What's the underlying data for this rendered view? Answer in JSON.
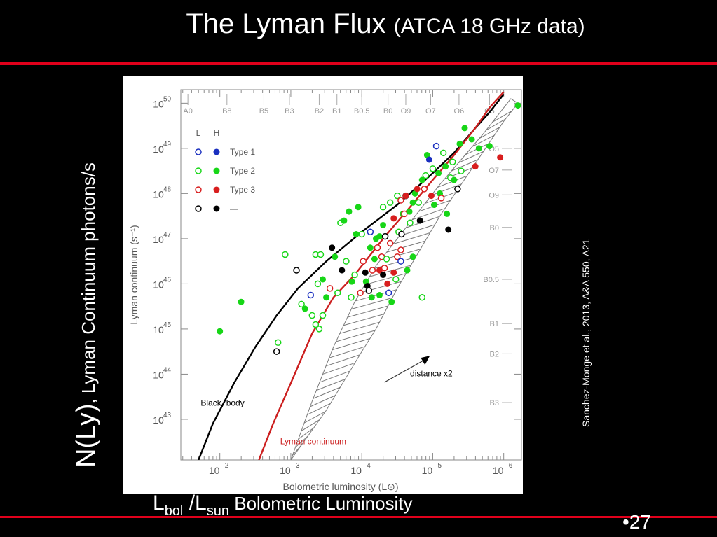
{
  "slide": {
    "title_main": "The Lyman Flux",
    "title_paren": "(ATCA 18  GHz data)",
    "ylabel_main": "N(Ly)",
    "ylabel_rest": ", Lyman Continuum photons/s",
    "credit": "Sanchez-Monge et al., 2013, A&A 550, A21",
    "xlabel_l": "L",
    "xlabel_bol": "bol",
    "xlabel_slash": " /L",
    "xlabel_sun": "sun",
    "xlabel_rest": " Bolometric Luminosity",
    "page_bullet": "•",
    "page_number": "27"
  },
  "chart_data": {
    "type": "scatter",
    "xlabel": "Bolometric luminosity (L⊙)",
    "ylabel": "Lyman continuum (s⁻¹)",
    "x_log": true,
    "y_log": true,
    "xlim_log10": [
      1.45,
      6.25
    ],
    "ylim_log10": [
      42.1,
      50.3
    ],
    "x_ticks": [
      {
        "log": 2,
        "base": "10",
        "exp": "2"
      },
      {
        "log": 3,
        "base": "10",
        "exp": "3"
      },
      {
        "log": 4,
        "base": "10",
        "exp": "4"
      },
      {
        "log": 5,
        "base": "10",
        "exp": "5"
      },
      {
        "log": 6,
        "base": "10",
        "exp": "6"
      }
    ],
    "y_ticks": [
      {
        "log": 43,
        "base": "10",
        "exp": "43"
      },
      {
        "log": 44,
        "base": "10",
        "exp": "44"
      },
      {
        "log": 45,
        "base": "10",
        "exp": "45"
      },
      {
        "log": 46,
        "base": "10",
        "exp": "46"
      },
      {
        "log": 47,
        "base": "10",
        "exp": "47"
      },
      {
        "log": 48,
        "base": "10",
        "exp": "48"
      },
      {
        "log": 49,
        "base": "10",
        "exp": "49"
      },
      {
        "log": 50,
        "base": "10",
        "exp": "50"
      }
    ],
    "top_spectral_types": [
      {
        "label": "A0",
        "logL": 1.55
      },
      {
        "label": "B8",
        "logL": 2.1
      },
      {
        "label": "B5",
        "logL": 2.62
      },
      {
        "label": "B3",
        "logL": 2.98
      },
      {
        "label": "B2",
        "logL": 3.4
      },
      {
        "label": "B1",
        "logL": 3.65
      },
      {
        "label": "B0.5",
        "logL": 4.0
      },
      {
        "label": "B0",
        "logL": 4.37
      },
      {
        "label": "O9",
        "logL": 4.62
      },
      {
        "label": "O7",
        "logL": 4.97
      },
      {
        "label": "O6",
        "logL": 5.37
      },
      {
        "label": "O5",
        "logL": 5.8
      }
    ],
    "right_spectral_types": [
      {
        "label": "O5",
        "logN": 49.0
      },
      {
        "label": "O7",
        "logN": 48.52
      },
      {
        "label": "O9",
        "logN": 47.97
      },
      {
        "label": "B0",
        "logN": 47.25
      },
      {
        "label": "B0.5",
        "logN": 46.1
      },
      {
        "label": "B1",
        "logN": 45.12
      },
      {
        "label": "B2",
        "logN": 44.45
      },
      {
        "label": "B3",
        "logN": 43.37
      }
    ],
    "legend": {
      "header_l": "L",
      "header_h": "H",
      "entries": [
        {
          "label": "Type 1",
          "color": "#1a2fbf"
        },
        {
          "label": "Type 2",
          "color": "#17d617"
        },
        {
          "label": "Type 3",
          "color": "#d81e1e"
        },
        {
          "label": "—",
          "color": "#000000"
        }
      ]
    },
    "series": [
      {
        "name": "Black-body",
        "color": "#000000",
        "points": [
          [
            1.7,
            42.1
          ],
          [
            1.9,
            42.9
          ],
          [
            2.2,
            43.8
          ],
          [
            2.5,
            44.6
          ],
          [
            2.8,
            45.3
          ],
          [
            3.1,
            45.9
          ],
          [
            3.5,
            46.5
          ],
          [
            4.0,
            47.15
          ],
          [
            4.5,
            47.75
          ],
          [
            5.0,
            48.45
          ],
          [
            5.3,
            48.9
          ],
          [
            5.6,
            49.45
          ],
          [
            5.8,
            49.8
          ],
          [
            6.0,
            50.2
          ]
        ]
      },
      {
        "name": "Lyman continuum",
        "color": "#cc1f1f",
        "points": [
          [
            2.55,
            42.1
          ],
          [
            2.75,
            42.9
          ],
          [
            3.0,
            43.8
          ],
          [
            3.3,
            44.9
          ],
          [
            3.6,
            45.7
          ],
          [
            3.9,
            46.2
          ],
          [
            4.1,
            46.6
          ],
          [
            4.3,
            47.0
          ],
          [
            4.6,
            47.55
          ],
          [
            5.0,
            48.3
          ],
          [
            5.3,
            48.85
          ],
          [
            5.6,
            49.45
          ],
          [
            5.8,
            49.9
          ],
          [
            6.0,
            50.25
          ]
        ]
      }
    ],
    "hatched_band": {
      "upper": [
        [
          3.0,
          42.1
        ],
        [
          3.3,
          43.4
        ],
        [
          3.6,
          44.6
        ],
        [
          3.9,
          45.6
        ],
        [
          4.2,
          46.4
        ],
        [
          4.5,
          47.0
        ],
        [
          4.8,
          47.6
        ],
        [
          5.1,
          48.2
        ],
        [
          5.4,
          48.75
        ],
        [
          5.7,
          49.3
        ],
        [
          5.95,
          49.8
        ],
        [
          6.1,
          50.1
        ]
      ],
      "lower": [
        [
          3.0,
          42.1
        ],
        [
          3.5,
          43.2
        ],
        [
          4.0,
          44.5
        ],
        [
          4.2,
          45.0
        ],
        [
          4.5,
          45.9
        ],
        [
          4.8,
          46.7
        ],
        [
          5.1,
          47.5
        ],
        [
          5.4,
          48.2
        ],
        [
          5.7,
          48.9
        ],
        [
          6.0,
          49.6
        ],
        [
          6.2,
          50.0
        ]
      ]
    },
    "annotations": [
      {
        "text": "Black−body",
        "logL": 1.73,
        "logN": 43.3,
        "color": "#000000"
      },
      {
        "text": "Lyman continuum",
        "logL": 2.85,
        "logN": 42.45,
        "color": "#cc1f1f"
      },
      {
        "text": "distance x2",
        "logL": 4.68,
        "logN": 43.95,
        "color": "#000000"
      }
    ],
    "arrow": {
      "from": [
        4.32,
        43.82
      ],
      "to": [
        4.9,
        44.33
      ]
    },
    "points": [
      {
        "logL": 2.3,
        "logN": 45.6,
        "cls": "Type 2",
        "res": "H"
      },
      {
        "logL": 2.0,
        "logN": 44.95,
        "cls": "Type 2",
        "res": "H"
      },
      {
        "logL": 2.92,
        "logN": 46.65,
        "cls": "Type 2",
        "res": "L"
      },
      {
        "logL": 2.82,
        "logN": 44.7,
        "cls": "Type 2",
        "res": "L"
      },
      {
        "logL": 2.8,
        "logN": 44.5,
        "cls": "—",
        "res": "L"
      },
      {
        "logL": 3.08,
        "logN": 46.3,
        "cls": "—",
        "res": "L"
      },
      {
        "logL": 3.15,
        "logN": 45.55,
        "cls": "Type 2",
        "res": "L"
      },
      {
        "logL": 3.2,
        "logN": 45.45,
        "cls": "Type 2",
        "res": "H"
      },
      {
        "logL": 3.3,
        "logN": 45.3,
        "cls": "Type 2",
        "res": "L"
      },
      {
        "logL": 3.35,
        "logN": 45.1,
        "cls": "Type 2",
        "res": "L"
      },
      {
        "logL": 3.4,
        "logN": 45.0,
        "cls": "Type 2",
        "res": "L"
      },
      {
        "logL": 3.45,
        "logN": 45.3,
        "cls": "Type 2",
        "res": "L"
      },
      {
        "logL": 3.28,
        "logN": 45.75,
        "cls": "Type 1",
        "res": "L"
      },
      {
        "logL": 3.38,
        "logN": 46.0,
        "cls": "Type 2",
        "res": "L"
      },
      {
        "logL": 3.45,
        "logN": 46.1,
        "cls": "Type 2",
        "res": "H"
      },
      {
        "logL": 3.5,
        "logN": 45.7,
        "cls": "Type 2",
        "res": "H"
      },
      {
        "logL": 3.35,
        "logN": 46.65,
        "cls": "Type 2",
        "res": "L"
      },
      {
        "logL": 3.42,
        "logN": 46.65,
        "cls": "Type 2",
        "res": "L"
      },
      {
        "logL": 3.58,
        "logN": 46.8,
        "cls": "—",
        "res": "H"
      },
      {
        "logL": 3.62,
        "logN": 46.6,
        "cls": "Type 2",
        "res": "H"
      },
      {
        "logL": 3.55,
        "logN": 45.9,
        "cls": "Type 3",
        "res": "L"
      },
      {
        "logL": 3.66,
        "logN": 45.8,
        "cls": "Type 2",
        "res": "L"
      },
      {
        "logL": 3.72,
        "logN": 46.3,
        "cls": "—",
        "res": "H"
      },
      {
        "logL": 3.78,
        "logN": 46.5,
        "cls": "Type 2",
        "res": "L"
      },
      {
        "logL": 3.7,
        "logN": 47.35,
        "cls": "Type 2",
        "res": "L"
      },
      {
        "logL": 3.75,
        "logN": 47.4,
        "cls": "Type 2",
        "res": "H"
      },
      {
        "logL": 3.82,
        "logN": 47.6,
        "cls": "Type 2",
        "res": "H"
      },
      {
        "logL": 3.86,
        "logN": 46.05,
        "cls": "Type 2",
        "res": "H"
      },
      {
        "logL": 3.85,
        "logN": 45.7,
        "cls": "Type 2",
        "res": "L"
      },
      {
        "logL": 3.9,
        "logN": 46.2,
        "cls": "Type 2",
        "res": "L"
      },
      {
        "logL": 3.92,
        "logN": 47.1,
        "cls": "Type 2",
        "res": "H"
      },
      {
        "logL": 3.95,
        "logN": 47.7,
        "cls": "Type 2",
        "res": "H"
      },
      {
        "logL": 3.98,
        "logN": 45.8,
        "cls": "Type 3",
        "res": "L"
      },
      {
        "logL": 4.0,
        "logN": 47.1,
        "cls": "Type 2",
        "res": "L"
      },
      {
        "logL": 4.02,
        "logN": 46.5,
        "cls": "Type 3",
        "res": "L"
      },
      {
        "logL": 4.05,
        "logN": 46.25,
        "cls": "—",
        "res": "H"
      },
      {
        "logL": 4.06,
        "logN": 46.05,
        "cls": "Type 2",
        "res": "H"
      },
      {
        "logL": 4.08,
        "logN": 45.95,
        "cls": "—",
        "res": "H"
      },
      {
        "logL": 4.1,
        "logN": 45.85,
        "cls": "—",
        "res": "L"
      },
      {
        "logL": 4.12,
        "logN": 47.15,
        "cls": "Type 1",
        "res": "L"
      },
      {
        "logL": 4.12,
        "logN": 46.8,
        "cls": "Type 2",
        "res": "H"
      },
      {
        "logL": 4.14,
        "logN": 45.7,
        "cls": "Type 2",
        "res": "H"
      },
      {
        "logL": 4.15,
        "logN": 46.3,
        "cls": "Type 3",
        "res": "L"
      },
      {
        "logL": 4.18,
        "logN": 46.55,
        "cls": "Type 2",
        "res": "H"
      },
      {
        "logL": 4.2,
        "logN": 47.0,
        "cls": "Type 2",
        "res": "H"
      },
      {
        "logL": 4.22,
        "logN": 46.8,
        "cls": "Type 3",
        "res": "L"
      },
      {
        "logL": 4.25,
        "logN": 47.05,
        "cls": "Type 2",
        "res": "H"
      },
      {
        "logL": 4.25,
        "logN": 45.75,
        "cls": "Type 2",
        "res": "H"
      },
      {
        "logL": 4.25,
        "logN": 46.3,
        "cls": "Type 3",
        "res": "H"
      },
      {
        "logL": 4.28,
        "logN": 46.6,
        "cls": "Type 3",
        "res": "L"
      },
      {
        "logL": 4.3,
        "logN": 47.3,
        "cls": "Type 2",
        "res": "H"
      },
      {
        "logL": 4.3,
        "logN": 47.7,
        "cls": "Type 2",
        "res": "L"
      },
      {
        "logL": 4.3,
        "logN": 46.2,
        "cls": "—",
        "res": "H"
      },
      {
        "logL": 4.32,
        "logN": 46.35,
        "cls": "Type 3",
        "res": "L"
      },
      {
        "logL": 4.33,
        "logN": 47.05,
        "cls": "—",
        "res": "L"
      },
      {
        "logL": 4.35,
        "logN": 46.55,
        "cls": "Type 2",
        "res": "L"
      },
      {
        "logL": 4.36,
        "logN": 46.0,
        "cls": "Type 3",
        "res": "H"
      },
      {
        "logL": 4.38,
        "logN": 45.8,
        "cls": "Type 1",
        "res": "L"
      },
      {
        "logL": 4.4,
        "logN": 47.8,
        "cls": "Type 2",
        "res": "L"
      },
      {
        "logL": 4.4,
        "logN": 46.9,
        "cls": "Type 3",
        "res": "L"
      },
      {
        "logL": 4.42,
        "logN": 45.6,
        "cls": "Type 2",
        "res": "H"
      },
      {
        "logL": 4.45,
        "logN": 47.45,
        "cls": "Type 3",
        "res": "H"
      },
      {
        "logL": 4.45,
        "logN": 46.25,
        "cls": "Type 3",
        "res": "H"
      },
      {
        "logL": 4.48,
        "logN": 46.1,
        "cls": "Type 2",
        "res": "L"
      },
      {
        "logL": 4.5,
        "logN": 47.95,
        "cls": "Type 2",
        "res": "L"
      },
      {
        "logL": 4.5,
        "logN": 46.6,
        "cls": "Type 3",
        "res": "L"
      },
      {
        "logL": 4.52,
        "logN": 47.15,
        "cls": "Type 2",
        "res": "L"
      },
      {
        "logL": 4.55,
        "logN": 47.85,
        "cls": "Type 3",
        "res": "L"
      },
      {
        "logL": 4.55,
        "logN": 46.5,
        "cls": "Type 1",
        "res": "L"
      },
      {
        "logL": 4.55,
        "logN": 46.75,
        "cls": "Type 3",
        "res": "L"
      },
      {
        "logL": 4.56,
        "logN": 47.1,
        "cls": "—",
        "res": "L"
      },
      {
        "logL": 4.58,
        "logN": 47.55,
        "cls": "Type 2",
        "res": "H"
      },
      {
        "logL": 4.6,
        "logN": 47.55,
        "cls": "Type 3",
        "res": "L"
      },
      {
        "logL": 4.62,
        "logN": 47.95,
        "cls": "—",
        "res": "L"
      },
      {
        "logL": 4.62,
        "logN": 47.95,
        "cls": "Type 3",
        "res": "H"
      },
      {
        "logL": 4.64,
        "logN": 46.3,
        "cls": "Type 2",
        "res": "H"
      },
      {
        "logL": 4.67,
        "logN": 47.6,
        "cls": "Type 2",
        "res": "H"
      },
      {
        "logL": 4.68,
        "logN": 47.35,
        "cls": "Type 2",
        "res": "L"
      },
      {
        "logL": 4.72,
        "logN": 47.8,
        "cls": "Type 2",
        "res": "H"
      },
      {
        "logL": 4.72,
        "logN": 46.6,
        "cls": "Type 2",
        "res": "H"
      },
      {
        "logL": 4.75,
        "logN": 48.0,
        "cls": "Type 2",
        "res": "H"
      },
      {
        "logL": 4.78,
        "logN": 48.1,
        "cls": "Type 3",
        "res": "H"
      },
      {
        "logL": 4.8,
        "logN": 47.8,
        "cls": "Type 2",
        "res": "L"
      },
      {
        "logL": 4.82,
        "logN": 47.4,
        "cls": "—",
        "res": "H"
      },
      {
        "logL": 4.85,
        "logN": 48.3,
        "cls": "Type 2",
        "res": "H"
      },
      {
        "logL": 4.85,
        "logN": 45.7,
        "cls": "Type 2",
        "res": "L"
      },
      {
        "logL": 4.88,
        "logN": 48.1,
        "cls": "Type 3",
        "res": "L"
      },
      {
        "logL": 4.9,
        "logN": 48.4,
        "cls": "Type 2",
        "res": "L"
      },
      {
        "logL": 4.92,
        "logN": 48.85,
        "cls": "Type 2",
        "res": "H"
      },
      {
        "logL": 4.95,
        "logN": 48.75,
        "cls": "Type 1",
        "res": "H"
      },
      {
        "logL": 4.98,
        "logN": 47.95,
        "cls": "Type 3",
        "res": "H"
      },
      {
        "logL": 5.0,
        "logN": 48.55,
        "cls": "Type 2",
        "res": "L"
      },
      {
        "logL": 5.02,
        "logN": 47.75,
        "cls": "Type 2",
        "res": "H"
      },
      {
        "logL": 5.05,
        "logN": 49.05,
        "cls": "Type 1",
        "res": "L"
      },
      {
        "logL": 5.08,
        "logN": 48.45,
        "cls": "Type 2",
        "res": "H"
      },
      {
        "logL": 5.1,
        "logN": 48.0,
        "cls": "Type 2",
        "res": "H"
      },
      {
        "logL": 5.12,
        "logN": 47.9,
        "cls": "Type 3",
        "res": "L"
      },
      {
        "logL": 5.15,
        "logN": 48.9,
        "cls": "Type 2",
        "res": "L"
      },
      {
        "logL": 5.18,
        "logN": 48.6,
        "cls": "Type 2",
        "res": "H"
      },
      {
        "logL": 5.2,
        "logN": 47.55,
        "cls": "Type 2",
        "res": "H"
      },
      {
        "logL": 5.22,
        "logN": 47.2,
        "cls": "—",
        "res": "H"
      },
      {
        "logL": 5.25,
        "logN": 48.35,
        "cls": "Type 2",
        "res": "L"
      },
      {
        "logL": 5.28,
        "logN": 48.7,
        "cls": "Type 2",
        "res": "L"
      },
      {
        "logL": 5.3,
        "logN": 48.3,
        "cls": "Type 2",
        "res": "H"
      },
      {
        "logL": 5.35,
        "logN": 48.1,
        "cls": "—",
        "res": "L"
      },
      {
        "logL": 5.38,
        "logN": 49.1,
        "cls": "Type 2",
        "res": "H"
      },
      {
        "logL": 5.4,
        "logN": 48.5,
        "cls": "Type 2",
        "res": "L"
      },
      {
        "logL": 5.45,
        "logN": 49.45,
        "cls": "Type 2",
        "res": "H"
      },
      {
        "logL": 5.55,
        "logN": 49.2,
        "cls": "Type 2",
        "res": "H"
      },
      {
        "logL": 5.6,
        "logN": 48.6,
        "cls": "Type 3",
        "res": "H"
      },
      {
        "logL": 5.65,
        "logN": 49.0,
        "cls": "Type 2",
        "res": "H"
      },
      {
        "logL": 5.8,
        "logN": 49.05,
        "cls": "Type 2",
        "res": "H"
      },
      {
        "logL": 5.95,
        "logN": 48.8,
        "cls": "Type 3",
        "res": "H"
      },
      {
        "logL": 6.2,
        "logN": 49.95,
        "cls": "Type 2",
        "res": "H"
      }
    ]
  }
}
